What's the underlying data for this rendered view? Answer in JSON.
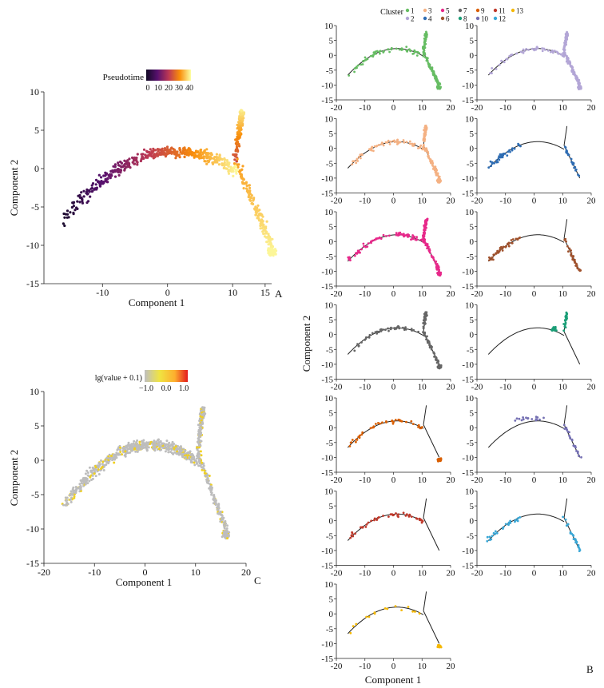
{
  "figure": {
    "panel_labels": [
      "A",
      "B",
      "C"
    ]
  },
  "chart_data": [
    {
      "id": "A",
      "type": "scatter",
      "title": "",
      "xlabel": "Component 1",
      "ylabel": "Component 2",
      "xlim": [
        -19,
        16
      ],
      "ylim": [
        -15,
        10
      ],
      "x_ticks": [
        -10,
        0,
        10,
        15
      ],
      "y_ticks": [
        10,
        5,
        0,
        -5,
        -10,
        -15
      ],
      "legend": {
        "title": "Pseudotime",
        "tick_labels": [
          "0",
          "10",
          "20",
          "30",
          "40"
        ],
        "colors": [
          "#120a25",
          "#57106e",
          "#bc3754",
          "#f98e09",
          "#fcffa4"
        ]
      },
      "color_by": "pseudotime",
      "pseudotime_range": [
        0,
        40
      ]
    },
    {
      "id": "C",
      "type": "scatter",
      "title": "",
      "xlabel": "Component 1",
      "ylabel": "Component 2",
      "xlim": [
        -20,
        20
      ],
      "ylim": [
        -15,
        10
      ],
      "x_ticks": [
        -20,
        -10,
        0,
        10,
        20
      ],
      "y_ticks": [
        10,
        5,
        0,
        -5,
        -10,
        -15
      ],
      "legend": {
        "title": "lg(value + 0.1)",
        "tick_labels": [
          "−1.0",
          "0.0",
          "1.0"
        ],
        "colors": [
          "#bfbfbf",
          "#f0e442",
          "#fdae2e",
          "#e41a1c"
        ]
      },
      "base_color": "#bdbdbd",
      "highlight_color": "#f0d020"
    },
    {
      "id": "B",
      "type": "scatter",
      "title": "",
      "xlabel": "Component 1",
      "ylabel": "Component 2",
      "xlim": [
        -20,
        20
      ],
      "ylim": [
        -15,
        10
      ],
      "x_ticks": [
        -20,
        -10,
        0,
        10,
        20
      ],
      "y_ticks": [
        10,
        5,
        0,
        -5,
        -10,
        -15
      ],
      "legend_title": "Cluster",
      "series": [
        {
          "name": "1",
          "color": "#66bd63"
        },
        {
          "name": "2",
          "color": "#b3a6d6"
        },
        {
          "name": "3",
          "color": "#f4b183"
        },
        {
          "name": "4",
          "color": "#2e6db4"
        },
        {
          "name": "5",
          "color": "#e7298a"
        },
        {
          "name": "6",
          "color": "#a0522d"
        },
        {
          "name": "7",
          "color": "#666666"
        },
        {
          "name": "8",
          "color": "#1b9e77"
        },
        {
          "name": "9",
          "color": "#d95f02"
        },
        {
          "name": "10",
          "color": "#7570b3"
        },
        {
          "name": "11",
          "color": "#c0392b"
        },
        {
          "name": "12",
          "color": "#3aa7d6"
        },
        {
          "name": "13",
          "color": "#f5b800"
        }
      ]
    }
  ]
}
